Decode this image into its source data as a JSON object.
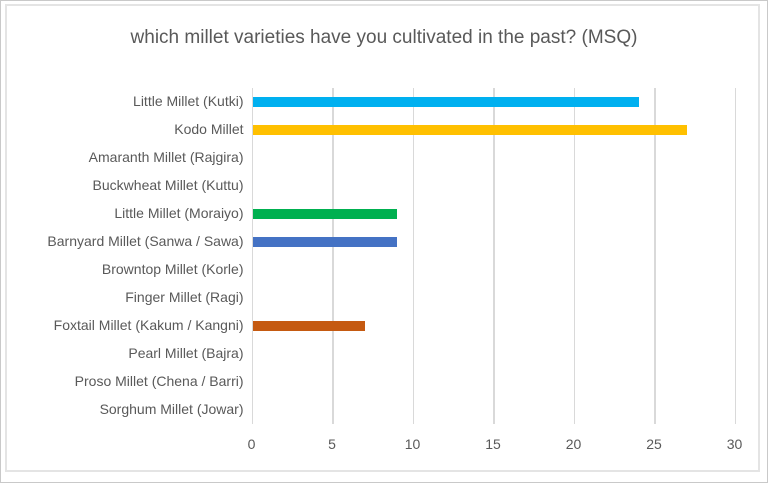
{
  "chart_data": {
    "type": "bar",
    "orientation": "horizontal",
    "title": "which millet varieties have you cultivated in the past? (MSQ)",
    "categories": [
      "Little Millet (Kutki)",
      "Kodo Millet",
      "Amaranth Millet (Rajgira)",
      "Buckwheat Millet (Kuttu)",
      "Little Millet (Moraiyo)",
      "Barnyard Millet (Sanwa / Sawa)",
      "Browntop Millet (Korle)",
      "Finger Millet (Ragi)",
      "Foxtail Millet (Kakum / Kangni)",
      "Pearl Millet (Bajra)",
      "Proso Millet (Chena / Barri)",
      "Sorghum Millet (Jowar)"
    ],
    "values": [
      24,
      27,
      0,
      0,
      9,
      9,
      0,
      0,
      7,
      0,
      0,
      0
    ],
    "bar_colors": [
      "#00B0F0",
      "#FFC000",
      null,
      null,
      "#00B050",
      "#4472C4",
      null,
      null,
      "#C55A11",
      null,
      null,
      null
    ],
    "x_ticks": [
      0,
      5,
      10,
      15,
      20,
      25,
      30
    ],
    "xlim": [
      0,
      30
    ],
    "grid": true,
    "legend": false,
    "title_color": "#595959",
    "label_color": "#595959",
    "gridline_color": "#d9d9d9"
  },
  "layout_note": ""
}
